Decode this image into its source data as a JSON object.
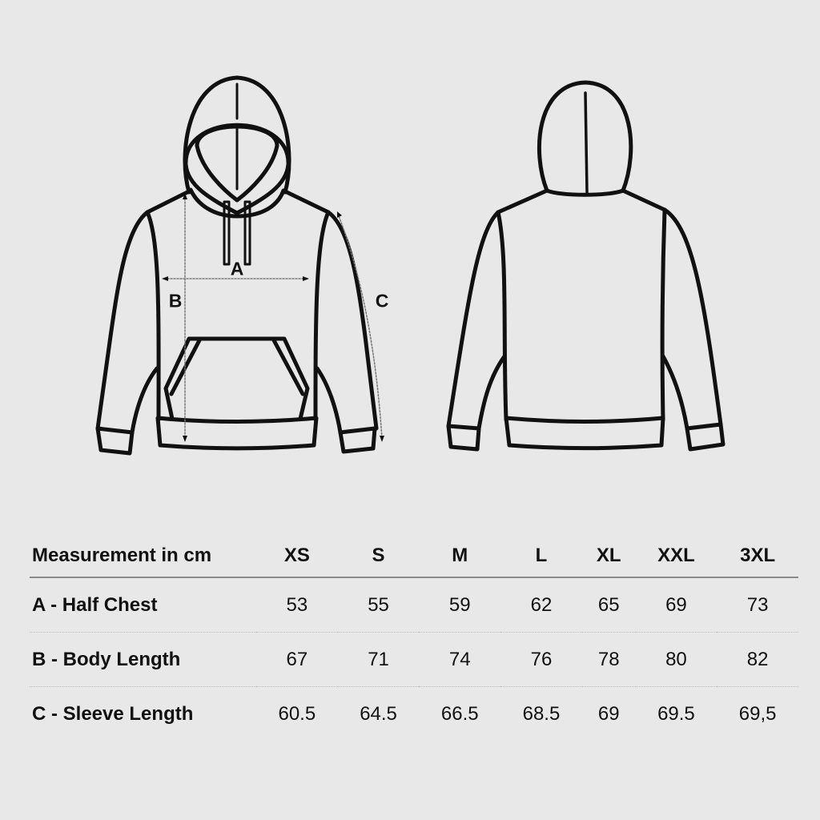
{
  "diagram": {
    "labels": {
      "a": "A",
      "b": "B",
      "c": "C"
    },
    "line_color": "#111111",
    "background": "#e8e8e8"
  },
  "table": {
    "header": [
      "Measurement in cm",
      "XS",
      "S",
      "M",
      "L",
      "XL",
      "XXL",
      "3XL"
    ],
    "rows": [
      [
        "A - Half Chest",
        "53",
        "55",
        "59",
        "62",
        "65",
        "69",
        "73"
      ],
      [
        "B - Body Length",
        "67",
        "71",
        "74",
        "76",
        "78",
        "80",
        "82"
      ],
      [
        "C - Sleeve Length",
        "60.5",
        "64.5",
        "66.5",
        "68.5",
        "69",
        "69.5",
        "69,5"
      ]
    ]
  }
}
